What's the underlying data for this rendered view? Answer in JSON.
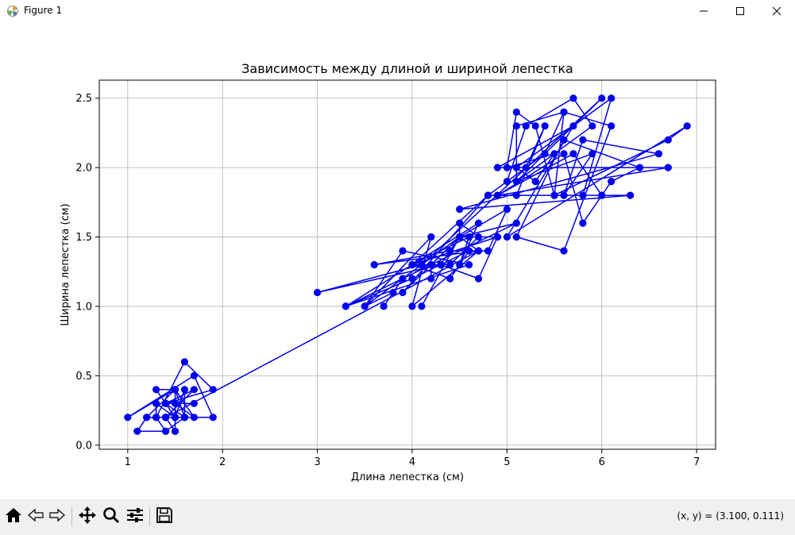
{
  "window": {
    "title": "Figure 1",
    "icons": {
      "app": "matplotlib-icon",
      "minimize": "minimize-icon",
      "maximize": "maximize-icon",
      "close": "close-icon"
    }
  },
  "toolbar": {
    "buttons": [
      "home-icon",
      "back-arrow-icon",
      "forward-arrow-icon",
      "pan-icon",
      "zoom-icon",
      "subplots-icon",
      "save-icon"
    ],
    "coords": "(x, y) = (3.100, 0.111)"
  },
  "colors": {
    "series": "#0000ee",
    "grid": "#b0b0b0",
    "axis": "#000000"
  },
  "chart_data": {
    "type": "line",
    "title": "Зависимость между длиной и шириной лепестка",
    "xlabel": "Длина лепестка (см)",
    "ylabel": "Ширина лепестка (см)",
    "xlim": [
      0.7,
      7.2
    ],
    "ylim": [
      -0.03,
      2.63
    ],
    "xticks": [
      1,
      2,
      3,
      4,
      5,
      6,
      7
    ],
    "yticks": [
      0.0,
      0.5,
      1.0,
      1.5,
      2.0,
      2.5
    ],
    "xtick_labels": [
      "1",
      "2",
      "3",
      "4",
      "5",
      "6",
      "7"
    ],
    "ytick_labels": [
      "0.0",
      "0.5",
      "1.0",
      "1.5",
      "2.0",
      "2.5"
    ],
    "grid": true,
    "marker": "circle",
    "series": [
      {
        "x": [
          1.4,
          1.4,
          1.3,
          1.5,
          1.4,
          1.7,
          1.4,
          1.5,
          1.4,
          1.5,
          1.5,
          1.6,
          1.4,
          1.1,
          1.2,
          1.5,
          1.3,
          1.4,
          1.7,
          1.5,
          1.7,
          1.5,
          1.0,
          1.7,
          1.9,
          1.6,
          1.6,
          1.5,
          1.4,
          1.6,
          1.6,
          1.5,
          1.5,
          1.4,
          1.5,
          1.2,
          1.3,
          1.4,
          1.3,
          1.5,
          1.3,
          1.3,
          1.3,
          1.6,
          1.9,
          1.4,
          1.6,
          1.4,
          1.5,
          1.4,
          4.7,
          4.5,
          4.9,
          4.0,
          4.6,
          4.5,
          4.7,
          3.3,
          4.6,
          3.9,
          3.5,
          4.2,
          4.0,
          4.7,
          3.6,
          4.4,
          4.5,
          4.1,
          4.5,
          3.9,
          4.8,
          4.0,
          4.9,
          4.7,
          4.3,
          4.4,
          4.8,
          5.0,
          4.5,
          3.5,
          3.8,
          3.7,
          3.9,
          5.1,
          4.5,
          4.5,
          4.7,
          4.4,
          4.1,
          4.0,
          4.4,
          4.6,
          4.0,
          3.3,
          4.2,
          4.2,
          4.2,
          4.3,
          3.0,
          4.1,
          6.0,
          5.1,
          5.9,
          5.6,
          5.8,
          6.6,
          4.5,
          6.3,
          5.8,
          6.1,
          5.1,
          5.3,
          5.5,
          5.0,
          5.1,
          5.3,
          5.5,
          6.7,
          6.9,
          5.0,
          5.7,
          4.9,
          6.7,
          4.9,
          5.7,
          6.0,
          4.8,
          4.9,
          5.6,
          5.8,
          6.1,
          6.4,
          5.6,
          5.1,
          5.6,
          6.1,
          5.6,
          5.5,
          4.8,
          5.4,
          5.6,
          5.1,
          5.1,
          5.9,
          5.7,
          5.2,
          5.0,
          5.2,
          5.4,
          5.1
        ],
        "y": [
          0.2,
          0.2,
          0.2,
          0.2,
          0.2,
          0.4,
          0.3,
          0.2,
          0.2,
          0.1,
          0.2,
          0.2,
          0.1,
          0.1,
          0.2,
          0.4,
          0.4,
          0.3,
          0.3,
          0.3,
          0.2,
          0.4,
          0.2,
          0.5,
          0.2,
          0.2,
          0.4,
          0.2,
          0.2,
          0.2,
          0.2,
          0.4,
          0.1,
          0.2,
          0.2,
          0.2,
          0.2,
          0.1,
          0.2,
          0.2,
          0.3,
          0.3,
          0.2,
          0.6,
          0.4,
          0.3,
          0.2,
          0.2,
          0.2,
          0.2,
          1.4,
          1.5,
          1.5,
          1.3,
          1.5,
          1.3,
          1.6,
          1.0,
          1.3,
          1.4,
          1.0,
          1.5,
          1.0,
          1.4,
          1.3,
          1.4,
          1.5,
          1.0,
          1.5,
          1.1,
          1.8,
          1.3,
          1.5,
          1.2,
          1.3,
          1.4,
          1.4,
          1.7,
          1.5,
          1.0,
          1.1,
          1.0,
          1.2,
          1.6,
          1.5,
          1.6,
          1.5,
          1.3,
          1.3,
          1.3,
          1.2,
          1.4,
          1.2,
          1.0,
          1.3,
          1.2,
          1.3,
          1.3,
          1.1,
          1.3,
          2.5,
          1.9,
          2.1,
          1.8,
          2.2,
          2.1,
          1.7,
          1.8,
          1.8,
          2.5,
          2.0,
          1.9,
          2.1,
          2.0,
          2.4,
          2.3,
          1.8,
          2.2,
          2.3,
          1.5,
          2.3,
          2.0,
          2.0,
          1.8,
          2.1,
          1.8,
          1.8,
          1.8,
          2.1,
          1.6,
          1.9,
          2.0,
          2.2,
          1.5,
          1.4,
          2.3,
          2.4,
          1.8,
          1.8,
          2.1,
          2.4,
          2.3,
          1.9,
          2.3,
          2.5,
          2.3,
          1.9,
          2.0,
          2.3,
          1.8
        ]
      }
    ]
  }
}
